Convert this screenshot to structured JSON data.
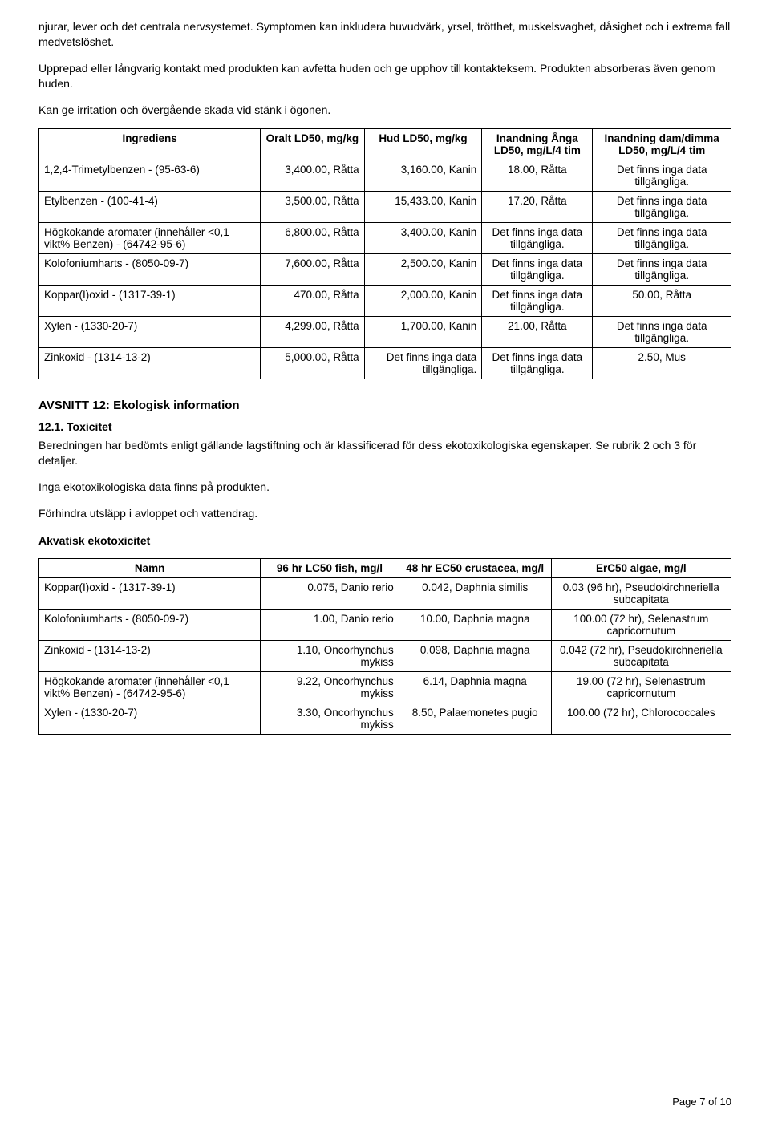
{
  "intro": {
    "p1": "njurar, lever och det centrala nervsystemet. Symptomen kan inkludera huvudvärk, yrsel, trötthet, muskelsvaghet, dåsighet och i extrema fall medvetslöshet.",
    "p2": "Upprepad eller långvarig kontakt med produkten kan avfetta huden och ge upphov till kontakteksem. Produkten absorberas även genom huden.",
    "p3": "Kan ge irritation och övergående skada vid stänk i ögonen."
  },
  "table1": {
    "headers": {
      "ingredient": "Ingrediens",
      "oral": "Oralt LD50, mg/kg",
      "skin": "Hud LD50, mg/kg",
      "inhale_vapor": "Inandning Ånga LD50, mg/L/4 tim",
      "inhale_dust": "Inandning dam/dimma LD50, mg/L/4 tim"
    },
    "rows": [
      {
        "ingredient": "1,2,4-Trimetylbenzen - (95-63-6)",
        "oral": "3,400.00, Råtta",
        "skin": "3,160.00, Kanin",
        "vapor": "18.00, Råtta",
        "dust": "Det finns inga data tillgängliga."
      },
      {
        "ingredient": "Etylbenzen - (100-41-4)",
        "oral": "3,500.00, Råtta",
        "skin": "15,433.00, Kanin",
        "vapor": "17.20, Råtta",
        "dust": "Det finns inga data tillgängliga."
      },
      {
        "ingredient": "Högkokande aromater (innehåller <0,1 vikt% Benzen) - (64742-95-6)",
        "oral": "6,800.00, Råtta",
        "skin": "3,400.00, Kanin",
        "vapor": "Det finns inga data tillgängliga.",
        "dust": "Det finns inga data tillgängliga."
      },
      {
        "ingredient": "Kolofoniumharts - (8050-09-7)",
        "oral": "7,600.00, Råtta",
        "skin": "2,500.00, Kanin",
        "vapor": "Det finns inga data tillgängliga.",
        "dust": "Det finns inga data tillgängliga."
      },
      {
        "ingredient": "Koppar(I)oxid - (1317-39-1)",
        "oral": "470.00, Råtta",
        "skin": "2,000.00, Kanin",
        "vapor": "Det finns inga data tillgängliga.",
        "dust": "50.00, Råtta"
      },
      {
        "ingredient": "Xylen - (1330-20-7)",
        "oral": "4,299.00, Råtta",
        "skin": "1,700.00, Kanin",
        "vapor": "21.00, Råtta",
        "dust": "Det finns inga data tillgängliga."
      },
      {
        "ingredient": "Zinkoxid - (1314-13-2)",
        "oral": "5,000.00, Råtta",
        "skin": "Det finns inga data tillgängliga.",
        "vapor": "Det finns inga data tillgängliga.",
        "dust": "2.50, Mus"
      }
    ]
  },
  "section12": {
    "title": "AVSNITT 12: Ekologisk information",
    "sub_title": "12.1. Toxicitet",
    "p1": "Beredningen har bedömts enligt gällande lagstiftning och är klassificerad för dess ekotoxikologiska egenskaper. Se rubrik 2 och 3 för detaljer.",
    "p2": "Inga ekotoxikologiska data finns på produkten.",
    "p3": "Förhindra utsläpp i avloppet och vattendrag.",
    "aquatic_title": "Akvatisk ekotoxicitet"
  },
  "table2": {
    "headers": {
      "name": "Namn",
      "lc50": "96 hr LC50 fish, mg/l",
      "ec50": "48 hr EC50 crustacea, mg/l",
      "erc50": "ErC50 algae, mg/l"
    },
    "rows": [
      {
        "name": "Koppar(I)oxid - (1317-39-1)",
        "lc50": "0.075, Danio rerio",
        "ec50": "0.042, Daphnia similis",
        "erc50": "0.03 (96 hr), Pseudokirchneriella subcapitata"
      },
      {
        "name": "Kolofoniumharts - (8050-09-7)",
        "lc50": "1.00, Danio rerio",
        "ec50": "10.00, Daphnia magna",
        "erc50": "100.00 (72 hr), Selenastrum capricornutum"
      },
      {
        "name": "Zinkoxid - (1314-13-2)",
        "lc50": "1.10, Oncorhynchus mykiss",
        "ec50": "0.098, Daphnia magna",
        "erc50": "0.042 (72 hr), Pseudokirchneriella subcapitata"
      },
      {
        "name": "Högkokande aromater (innehåller <0,1 vikt% Benzen) - (64742-95-6)",
        "lc50": "9.22, Oncorhynchus mykiss",
        "ec50": "6.14, Daphnia magna",
        "erc50": "19.00 (72 hr), Selenastrum capricornutum"
      },
      {
        "name": "Xylen - (1330-20-7)",
        "lc50": "3.30, Oncorhynchus mykiss",
        "ec50": "8.50, Palaemonetes pugio",
        "erc50": "100.00 (72 hr), Chlorococcales"
      }
    ]
  },
  "footer": "Page 7 of 10"
}
